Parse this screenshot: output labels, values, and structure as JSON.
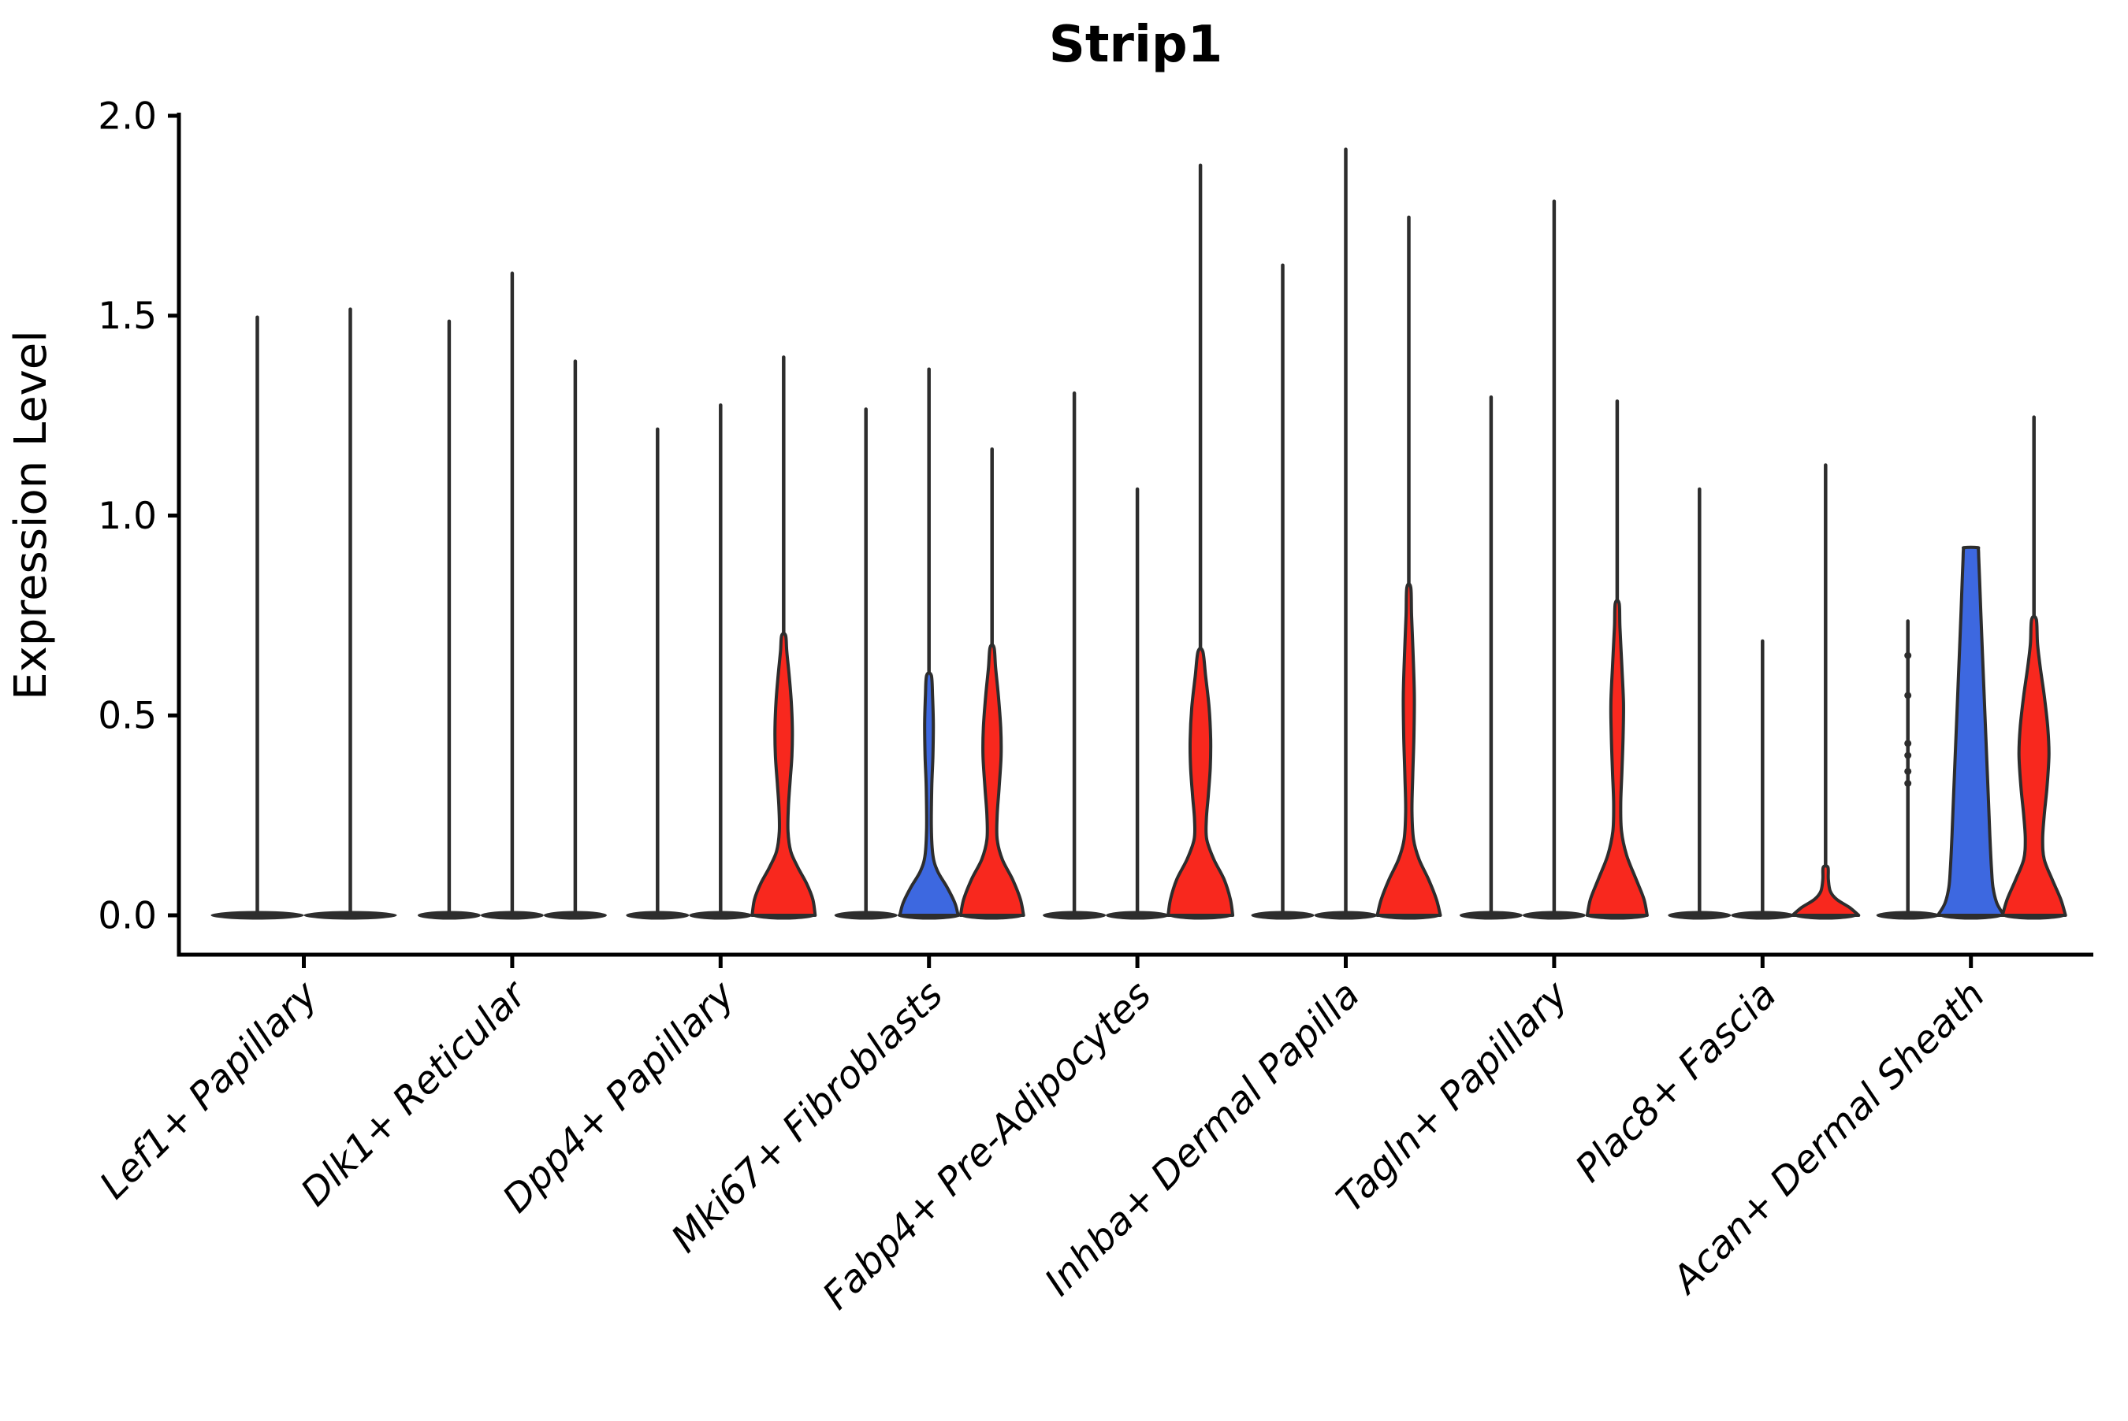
{
  "chart_data": {
    "type": "violin",
    "title": "Strip1",
    "ylabel": "Expression Level",
    "ylim": [
      0.0,
      2.0
    ],
    "yticks": [
      0.0,
      0.5,
      1.0,
      1.5,
      2.0
    ],
    "ytick_labels": [
      "0.0",
      "0.5",
      "1.0",
      "1.5",
      "2.0"
    ],
    "grid": false,
    "legend": "none",
    "split_colors": {
      "blue": "#3D68E0",
      "red": "#F8281E"
    },
    "outline_color": "#2d2d2d",
    "axis_color": "#000000",
    "categories": [
      {
        "label": "Lef1+ Papillary",
        "violins": [
          {
            "max": 1.5,
            "fill": null
          },
          {
            "max": 1.52,
            "fill": null
          }
        ]
      },
      {
        "label": "Dlk1+ Reticular",
        "violins": [
          {
            "max": 1.49,
            "fill": null
          },
          {
            "max": 1.61,
            "fill": null
          },
          {
            "max": 1.39,
            "fill": null
          }
        ]
      },
      {
        "label": "Dpp4+ Papillary",
        "violins": [
          {
            "max": 1.22,
            "fill": null
          },
          {
            "max": 1.28,
            "fill": null
          },
          {
            "max": 1.4,
            "fill": "red",
            "profile": "dpp4_red"
          }
        ]
      },
      {
        "label": "Mki67+ Fibroblasts",
        "violins": [
          {
            "max": 1.27,
            "fill": null
          },
          {
            "max": 1.37,
            "fill": "blue",
            "profile": "mki67_blue"
          },
          {
            "max": 1.17,
            "fill": "red",
            "profile": "mki67_red"
          }
        ]
      },
      {
        "label": "Fabp4+ Pre-Adipocytes",
        "violins": [
          {
            "max": 1.31,
            "fill": null
          },
          {
            "max": 1.07,
            "fill": null
          },
          {
            "max": 1.88,
            "fill": "red",
            "profile": "fabp4_red"
          }
        ]
      },
      {
        "label": "Inhba+ Dermal Papilla",
        "violins": [
          {
            "max": 1.63,
            "fill": null
          },
          {
            "max": 1.92,
            "fill": null
          },
          {
            "max": 1.75,
            "fill": "red",
            "profile": "inhba_red"
          }
        ]
      },
      {
        "label": "Tagln+ Papillary",
        "violins": [
          {
            "max": 1.3,
            "fill": null
          },
          {
            "max": 1.79,
            "fill": null
          },
          {
            "max": 1.29,
            "fill": "red",
            "profile": "tagln_red"
          }
        ]
      },
      {
        "label": "Plac8+ Fascia",
        "violins": [
          {
            "max": 1.07,
            "fill": null
          },
          {
            "max": 0.69,
            "fill": null
          },
          {
            "max": 1.13,
            "fill": "red",
            "profile": "plac8_red"
          }
        ]
      },
      {
        "label": "Acan+ Dermal Sheath",
        "violins": [
          {
            "max": 0.74,
            "fill": null,
            "dots": [
              0.65,
              0.55,
              0.43,
              0.4,
              0.36,
              0.33
            ]
          },
          {
            "max": 0.92,
            "fill": "blue",
            "profile": "acan_blue"
          },
          {
            "max": 1.25,
            "fill": "red",
            "profile": "acan_red"
          }
        ]
      }
    ],
    "profiles": {
      "dpp4_red": [
        [
          0,
          40
        ],
        [
          0.04,
          37
        ],
        [
          0.08,
          29
        ],
        [
          0.12,
          18
        ],
        [
          0.16,
          9
        ],
        [
          0.21,
          5.5
        ],
        [
          0.27,
          6
        ],
        [
          0.33,
          8
        ],
        [
          0.4,
          10.5
        ],
        [
          0.47,
          11
        ],
        [
          0.54,
          9.5
        ],
        [
          0.6,
          7
        ],
        [
          0.66,
          4
        ],
        [
          0.7,
          2.5
        ]
      ],
      "mki67_blue": [
        [
          0,
          37
        ],
        [
          0.03,
          33
        ],
        [
          0.07,
          23
        ],
        [
          0.11,
          11
        ],
        [
          0.15,
          5
        ],
        [
          0.22,
          3
        ],
        [
          0.32,
          3.5
        ],
        [
          0.4,
          5
        ],
        [
          0.48,
          5.5
        ],
        [
          0.55,
          4.5
        ],
        [
          0.6,
          3
        ]
      ],
      "mki67_red": [
        [
          0,
          40
        ],
        [
          0.04,
          36
        ],
        [
          0.09,
          26
        ],
        [
          0.14,
          13
        ],
        [
          0.19,
          6.5
        ],
        [
          0.25,
          6.5
        ],
        [
          0.32,
          9
        ],
        [
          0.4,
          11.5
        ],
        [
          0.47,
          11
        ],
        [
          0.55,
          8
        ],
        [
          0.62,
          4.5
        ],
        [
          0.67,
          2.5
        ]
      ],
      "fabp4_red": [
        [
          0,
          41
        ],
        [
          0.04,
          38
        ],
        [
          0.09,
          30
        ],
        [
          0.14,
          17
        ],
        [
          0.19,
          8
        ],
        [
          0.24,
          7.5
        ],
        [
          0.3,
          10
        ],
        [
          0.37,
          12.5
        ],
        [
          0.44,
          13
        ],
        [
          0.52,
          11
        ],
        [
          0.6,
          6.5
        ],
        [
          0.66,
          3
        ]
      ],
      "inhba_red": [
        [
          0,
          40
        ],
        [
          0.04,
          35
        ],
        [
          0.09,
          25
        ],
        [
          0.14,
          13
        ],
        [
          0.19,
          6
        ],
        [
          0.26,
          4
        ],
        [
          0.35,
          5
        ],
        [
          0.45,
          6.5
        ],
        [
          0.55,
          7
        ],
        [
          0.65,
          5.5
        ],
        [
          0.75,
          3.5
        ],
        [
          0.82,
          2.5
        ]
      ],
      "tagln_red": [
        [
          0,
          38
        ],
        [
          0.04,
          34
        ],
        [
          0.09,
          24
        ],
        [
          0.15,
          12
        ],
        [
          0.21,
          5.5
        ],
        [
          0.28,
          4.5
        ],
        [
          0.36,
          6
        ],
        [
          0.45,
          7.5
        ],
        [
          0.53,
          8
        ],
        [
          0.62,
          6
        ],
        [
          0.72,
          3.5
        ],
        [
          0.78,
          2.5
        ]
      ],
      "plac8_red": [
        [
          0,
          42
        ],
        [
          0.02,
          30
        ],
        [
          0.04,
          14
        ],
        [
          0.06,
          6
        ],
        [
          0.09,
          3.5
        ],
        [
          0.12,
          3
        ]
      ],
      "acan_blue": [
        [
          0,
          42
        ],
        [
          0.03,
          33
        ],
        [
          0.07,
          28
        ],
        [
          0.12,
          26
        ],
        [
          0.2,
          24
        ],
        [
          0.3,
          22
        ],
        [
          0.42,
          19.5
        ],
        [
          0.54,
          17
        ],
        [
          0.66,
          14.5
        ],
        [
          0.76,
          12.5
        ],
        [
          0.84,
          11
        ],
        [
          0.89,
          10
        ],
        [
          0.915,
          9.5
        ],
        [
          0.92,
          8
        ]
      ],
      "acan_red": [
        [
          0,
          40
        ],
        [
          0.04,
          34
        ],
        [
          0.09,
          23
        ],
        [
          0.14,
          13
        ],
        [
          0.19,
          11
        ],
        [
          0.25,
          13
        ],
        [
          0.32,
          16.5
        ],
        [
          0.4,
          19
        ],
        [
          0.47,
          17.5
        ],
        [
          0.55,
          13
        ],
        [
          0.62,
          8
        ],
        [
          0.68,
          4.5
        ],
        [
          0.74,
          3
        ]
      ]
    }
  }
}
